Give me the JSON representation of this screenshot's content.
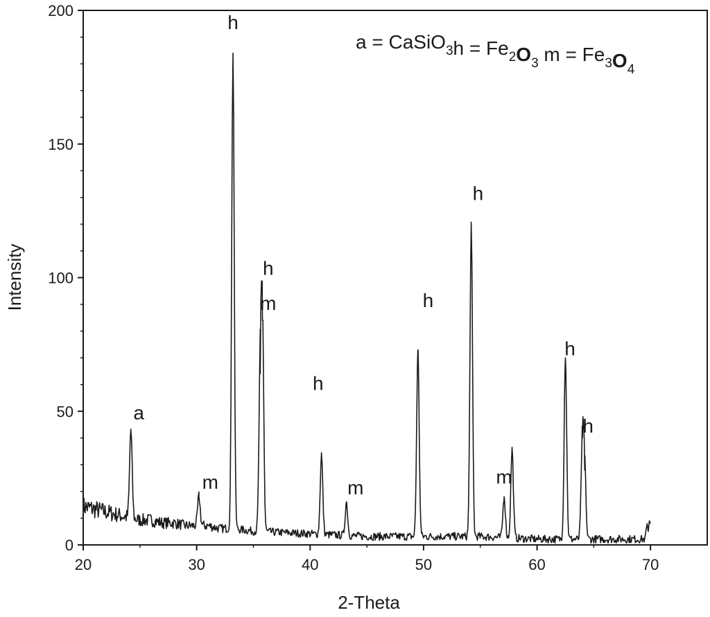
{
  "chart_data": {
    "type": "line",
    "xlabel": "2-Theta",
    "ylabel": "Intensity",
    "xlim": [
      20,
      75
    ],
    "ylim": [
      0,
      200
    ],
    "xticks": [
      20,
      30,
      40,
      50,
      60,
      70
    ],
    "yticks": [
      0,
      50,
      100,
      150,
      200
    ],
    "grid": false,
    "legend": {
      "placement": "top-right",
      "parts": [
        {
          "text": "a = CaSiO",
          "sub": "3",
          "weight": "normal"
        },
        {
          "text": "h = Fe",
          "sub": "2",
          "weight": "normal"
        },
        {
          "text": "O",
          "sub": "3",
          "weight": "bold"
        },
        {
          "text": "m = Fe",
          "sub": "3",
          "weight": "normal"
        },
        {
          "text": "O",
          "sub": "4",
          "weight": "bold"
        }
      ]
    },
    "peaks": [
      {
        "x": 24.2,
        "y": 43
      },
      {
        "x": 30.2,
        "y": 18
      },
      {
        "x": 33.2,
        "y": 184
      },
      {
        "x": 35.6,
        "y": 64
      },
      {
        "x": 35.8,
        "y": 84
      },
      {
        "x": 41.0,
        "y": 34
      },
      {
        "x": 43.2,
        "y": 16
      },
      {
        "x": 49.5,
        "y": 73
      },
      {
        "x": 54.2,
        "y": 120
      },
      {
        "x": 57.1,
        "y": 18
      },
      {
        "x": 57.8,
        "y": 36
      },
      {
        "x": 62.5,
        "y": 70
      },
      {
        "x": 64.0,
        "y": 40
      },
      {
        "x": 64.2,
        "y": 28
      }
    ],
    "background": [
      [
        20.0,
        14
      ],
      [
        21.0,
        13
      ],
      [
        22.0,
        12
      ],
      [
        23.0,
        11
      ],
      [
        24.0,
        10
      ],
      [
        25.0,
        9
      ],
      [
        26.0,
        9
      ],
      [
        27.0,
        8
      ],
      [
        28.0,
        8
      ],
      [
        29.0,
        7
      ],
      [
        30.0,
        7
      ],
      [
        31.0,
        7
      ],
      [
        32.0,
        6
      ],
      [
        33.0,
        6
      ],
      [
        35.0,
        5
      ],
      [
        40.0,
        4
      ],
      [
        45.0,
        3
      ],
      [
        50.0,
        3
      ],
      [
        55.0,
        3
      ],
      [
        60.0,
        2
      ],
      [
        65.0,
        2
      ],
      [
        69.5,
        2
      ]
    ],
    "end_segment": {
      "x_start": 69.7,
      "x_end": 70.0,
      "y": 8
    },
    "annotations": [
      {
        "text": "a",
        "x": 24.9,
        "y": 47
      },
      {
        "text": "m",
        "x": 31.2,
        "y": 21
      },
      {
        "text": "h",
        "x": 33.2,
        "y": 193
      },
      {
        "text": "h",
        "x": 36.3,
        "y": 101
      },
      {
        "text": "m",
        "x": 36.3,
        "y": 88
      },
      {
        "text": "h",
        "x": 40.7,
        "y": 58
      },
      {
        "text": "m",
        "x": 44.0,
        "y": 19
      },
      {
        "text": "h",
        "x": 50.4,
        "y": 89
      },
      {
        "text": "h",
        "x": 54.8,
        "y": 129
      },
      {
        "text": "m",
        "x": 57.1,
        "y": 23
      },
      {
        "text": "h",
        "x": 62.9,
        "y": 71
      },
      {
        "text": "h",
        "x": 64.5,
        "y": 42
      }
    ]
  }
}
